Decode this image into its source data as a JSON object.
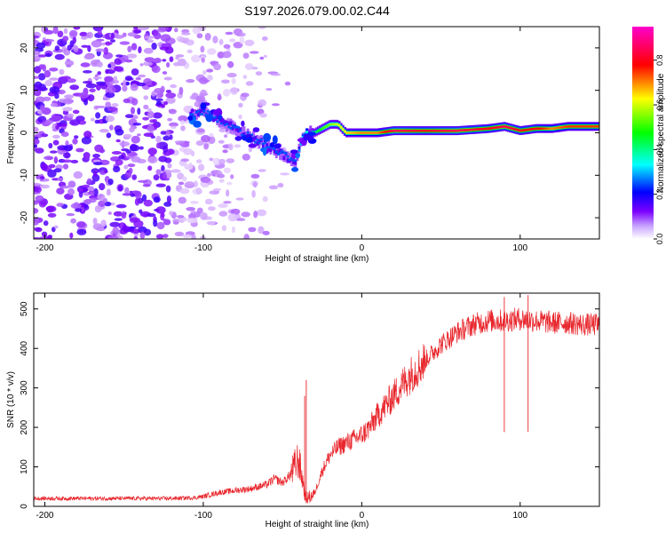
{
  "title": "S197.2026.079.00.02.C44",
  "chart_data": [
    {
      "type": "heatmap",
      "xlabel": "Height of straight line (km)",
      "ylabel": "Frequency (Hz)",
      "xlim": [
        -207,
        150
      ],
      "ylim": [
        -25,
        25
      ],
      "xticks": [
        -200,
        -100,
        0,
        100
      ],
      "xtick_labels": [
        "-200",
        "-100",
        "0",
        "100"
      ],
      "yticks": [
        20,
        10,
        0,
        -10,
        -20
      ],
      "ytick_labels": [
        "20",
        "10",
        "0",
        "-10",
        "-20"
      ],
      "colorbar": {
        "label": "Normalized spectral amplitude",
        "range": [
          0.0,
          0.95
        ],
        "ticks": [
          0.0,
          0.2,
          0.4,
          0.6,
          0.8
        ],
        "tick_labels": [
          "0.0",
          "0.2",
          "0.4",
          "0.6",
          "0.8"
        ],
        "colormap": [
          "#ffffff",
          "#7b00ff",
          "#0000ff",
          "#00ffff",
          "#00ff00",
          "#ffff00",
          "#ff0000",
          "#ff00cc"
        ]
      },
      "ridge": {
        "x": [
          -108,
          -100,
          -90,
          -80,
          -70,
          -60,
          -50,
          -42,
          -38,
          -35,
          -30,
          -25,
          -20,
          -15,
          -10,
          0,
          10,
          20,
          40,
          60,
          80,
          90,
          100,
          110,
          120,
          130,
          140,
          150
        ],
        "freq": [
          4,
          5,
          3,
          1,
          -1,
          -3,
          -5,
          -7,
          -2,
          0,
          0,
          1,
          2,
          2,
          0,
          0,
          0,
          0.5,
          0.5,
          0.5,
          1,
          1.5,
          0.5,
          1,
          1,
          1.5,
          1.5,
          1.5
        ],
        "amplitude": [
          0.25,
          0.25,
          0.25,
          0.25,
          0.25,
          0.25,
          0.25,
          0.25,
          0.3,
          0.35,
          0.4,
          0.5,
          0.55,
          0.6,
          0.65,
          0.7,
          0.7,
          0.85,
          0.8,
          0.85,
          0.8,
          0.85,
          0.8,
          0.8,
          0.7,
          0.75,
          0.75,
          0.75
        ]
      },
      "noise_extent_x": [
        -207,
        -45
      ]
    },
    {
      "type": "line",
      "xlabel": "Height of straight line (km)",
      "ylabel": "SNR (10 * v/v)",
      "xlim": [
        -207,
        150
      ],
      "ylim": [
        0,
        540
      ],
      "xticks": [
        -200,
        -100,
        0,
        100
      ],
      "xtick_labels": [
        "-200",
        "-100",
        "0",
        "100"
      ],
      "yticks": [
        0,
        100,
        200,
        300,
        400,
        500
      ],
      "ytick_labels": [
        "0",
        "100",
        "200",
        "300",
        "400",
        "500"
      ],
      "series": [
        {
          "name": "SNR",
          "color": "#e8262c",
          "x": [
            -207,
            -180,
            -150,
            -120,
            -105,
            -100,
            -90,
            -80,
            -70,
            -60,
            -55,
            -50,
            -45,
            -40,
            -35,
            -30,
            -25,
            -20,
            -15,
            -10,
            -5,
            0,
            5,
            10,
            20,
            30,
            40,
            50,
            60,
            70,
            80,
            90,
            100,
            110,
            120,
            130,
            140,
            150
          ],
          "y": [
            20,
            20,
            20,
            20,
            22,
            25,
            35,
            40,
            45,
            55,
            70,
            60,
            80,
            120,
            20,
            30,
            90,
            130,
            150,
            160,
            170,
            180,
            200,
            230,
            280,
            330,
            370,
            410,
            440,
            460,
            470,
            470,
            475,
            470,
            465,
            465,
            460,
            460
          ]
        }
      ],
      "spikes": [
        {
          "x": -35,
          "y": 320
        },
        {
          "x": -36,
          "y": 280
        },
        {
          "x": 105,
          "y": 535
        },
        {
          "x": 90,
          "y": 530
        }
      ]
    }
  ]
}
